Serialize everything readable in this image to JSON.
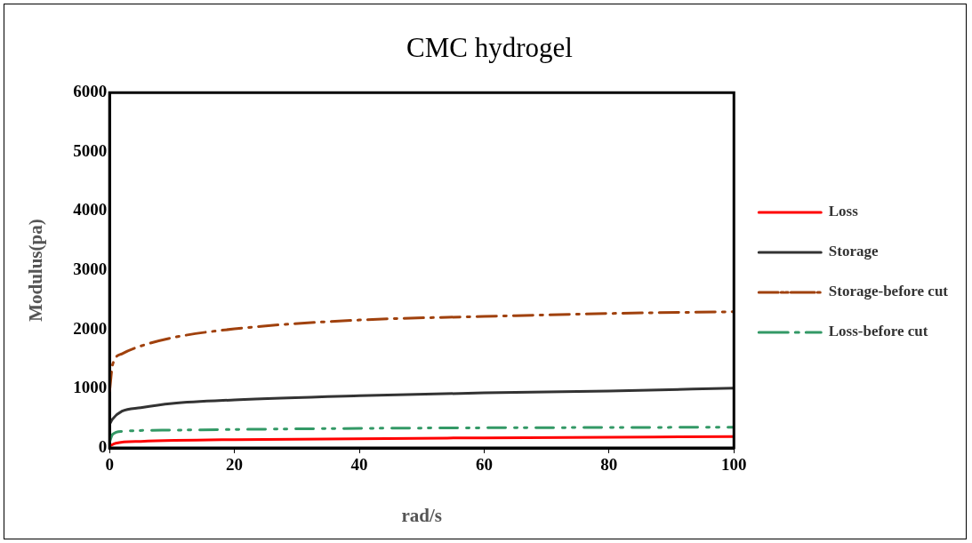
{
  "chart_data": {
    "type": "line",
    "title": "CMC hydrogel",
    "xlabel": "rad/s",
    "ylabel": "Modulus(pa)",
    "xlim": [
      0,
      100
    ],
    "xticks": [
      0,
      20,
      40,
      60,
      80,
      100
    ],
    "ylim": [
      0,
      6000
    ],
    "yticks": [
      0,
      1000,
      2000,
      3000,
      4000,
      5000,
      6000
    ],
    "grid": false,
    "legend": "right",
    "marker": "none",
    "series": [
      {
        "name": "Loss",
        "color": "#ff0000",
        "line_style": "solid",
        "x": [
          0,
          1,
          5,
          20,
          60,
          100
        ],
        "values": [
          30,
          80,
          110,
          140,
          170,
          190
        ]
      },
      {
        "name": "Storage",
        "color": "#333333",
        "line_style": "solid",
        "x": [
          0,
          0.5,
          2,
          5,
          10,
          20,
          40,
          60,
          80,
          100
        ],
        "values": [
          400,
          490,
          620,
          680,
          750,
          810,
          880,
          930,
          960,
          1010
        ]
      },
      {
        "name": "Storage-before cut",
        "color": "#a0410d",
        "line_style": "dashed",
        "x": [
          0,
          0.5,
          2,
          5,
          10,
          20,
          40,
          60,
          80,
          100
        ],
        "values": [
          950,
          1410,
          1590,
          1720,
          1860,
          2010,
          2160,
          2220,
          2270,
          2300
        ]
      },
      {
        "name": "Loss-before cut",
        "color": "#339966",
        "line_style": "dotted",
        "x": [
          0,
          0.5,
          2,
          10,
          40,
          100
        ],
        "values": [
          100,
          230,
          280,
          300,
          330,
          350
        ]
      }
    ]
  }
}
